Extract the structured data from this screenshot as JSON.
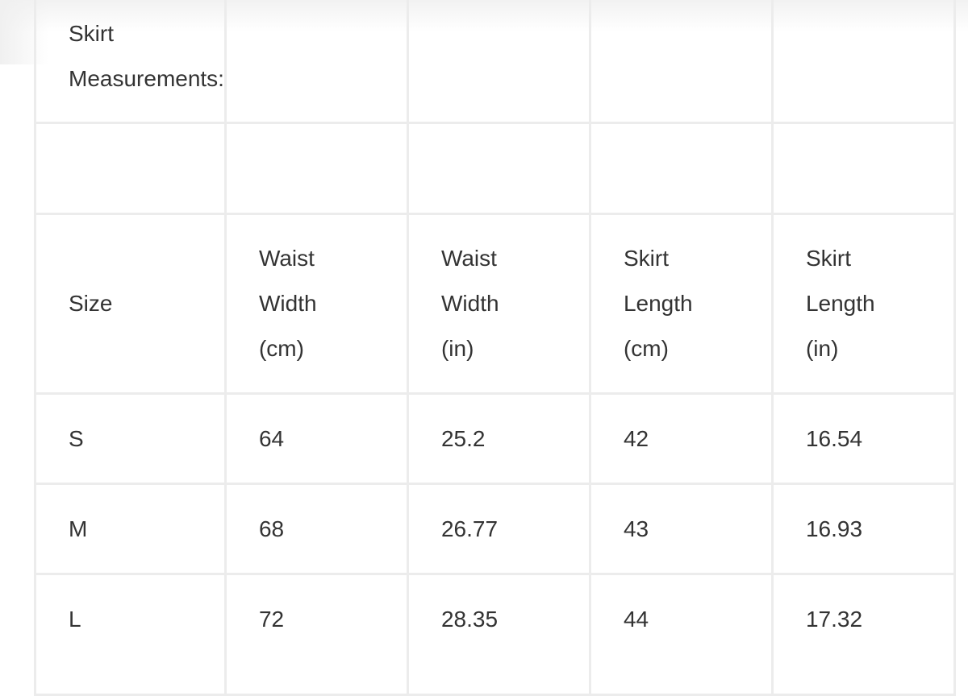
{
  "title_lines": [
    "Skirt",
    "Measurements:"
  ],
  "header": {
    "size": "Size",
    "columns": [
      [
        "Waist",
        "Width",
        "(cm)"
      ],
      [
        "Waist",
        "Width",
        "(in)"
      ],
      [
        "Skirt",
        "Length",
        "(cm)"
      ],
      [
        "Skirt",
        "Length",
        "(in)"
      ]
    ]
  },
  "rows": [
    [
      "S",
      "64",
      "25.2",
      "42",
      "16.54"
    ],
    [
      "M",
      "68",
      "26.77",
      "43",
      "16.93"
    ],
    [
      "L",
      "72",
      "28.35",
      "44",
      "17.32"
    ]
  ]
}
